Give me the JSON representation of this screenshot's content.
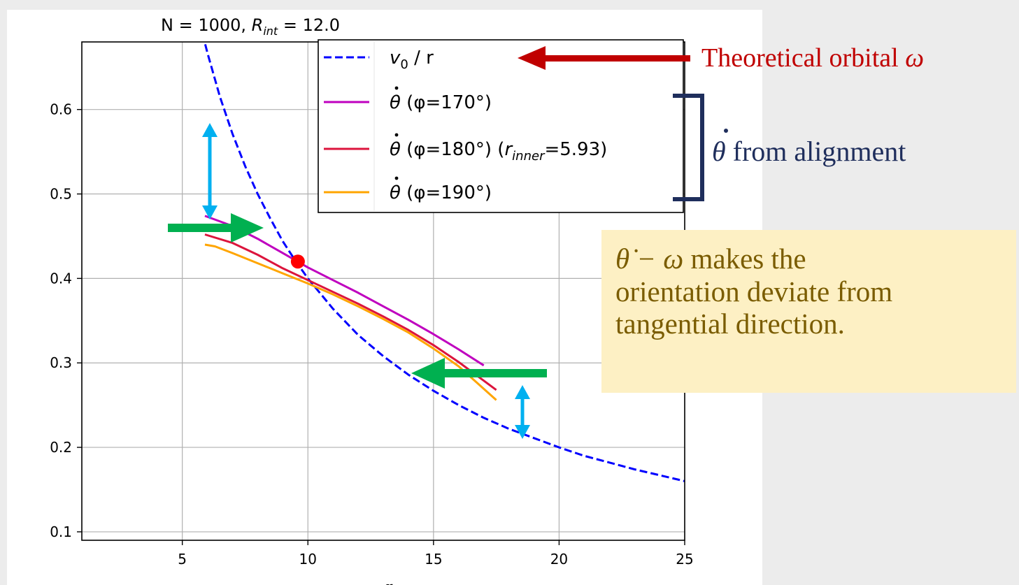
{
  "chart_data": {
    "type": "line",
    "title": "N = 1000,  R_int = 12.0",
    "title_parts": {
      "prefix": "N = 1000,  ",
      "var": "R",
      "sub": "int",
      "suffix": " = 12.0"
    },
    "xlabel": "r",
    "ylabel": "",
    "xlim": [
      1,
      25
    ],
    "ylim": [
      0.09,
      0.68
    ],
    "xticks": [
      5,
      10,
      15,
      20,
      25
    ],
    "yticks": [
      0.1,
      0.2,
      0.3,
      0.4,
      0.5,
      0.6
    ],
    "grid": true,
    "legend_position": "top-right",
    "series": [
      {
        "name": "v0 / r",
        "legend": {
          "var": "v",
          "sub": "0",
          "rest": " / r"
        },
        "style": "dashed",
        "color": "#0000ff",
        "x": [
          5.8,
          6.0,
          6.5,
          7.0,
          7.5,
          8.0,
          8.5,
          9.0,
          9.5,
          10,
          11,
          12,
          13,
          14,
          15,
          16,
          17,
          18,
          19,
          20,
          21,
          22,
          23,
          24,
          25
        ],
        "y": [
          0.69,
          0.667,
          0.615,
          0.571,
          0.533,
          0.5,
          0.471,
          0.444,
          0.421,
          0.4,
          0.364,
          0.333,
          0.308,
          0.286,
          0.267,
          0.25,
          0.235,
          0.222,
          0.211,
          0.2,
          0.19,
          0.182,
          0.174,
          0.167,
          0.16
        ]
      },
      {
        "name": "θ̇ (φ=170°)",
        "legend": {
          "rest": "  (φ=170°)"
        },
        "style": "solid",
        "color": "#bf00bf",
        "x": [
          5.9,
          7,
          8,
          9,
          10,
          11,
          12,
          13,
          14,
          15,
          16,
          17.0
        ],
        "y": [
          0.474,
          0.462,
          0.447,
          0.43,
          0.413,
          0.398,
          0.383,
          0.367,
          0.351,
          0.334,
          0.316,
          0.297
        ]
      },
      {
        "name": "θ̇ (φ=180°) (r_inner=5.93)",
        "legend": {
          "rest": "  (φ=180°)",
          "extra_var": "r",
          "extra_sub": "inner",
          "extra_rest": "=5.93)"
        },
        "style": "solid",
        "color": "#dc143c",
        "x": [
          5.9,
          7,
          8,
          9,
          10,
          11,
          12,
          13,
          14,
          15,
          16,
          17.5
        ],
        "y": [
          0.452,
          0.442,
          0.428,
          0.412,
          0.398,
          0.384,
          0.37,
          0.355,
          0.339,
          0.321,
          0.301,
          0.268
        ]
      },
      {
        "name": "θ̇ (φ=190°)",
        "legend": {
          "rest": "  (φ=190°)"
        },
        "style": "solid",
        "color": "#ffa500",
        "x": [
          5.9,
          6.3,
          7,
          8,
          9,
          10,
          11,
          12,
          13,
          14,
          15,
          16,
          17.5
        ],
        "y": [
          0.44,
          0.438,
          0.43,
          0.418,
          0.406,
          0.394,
          0.381,
          0.367,
          0.352,
          0.336,
          0.317,
          0.296,
          0.256
        ]
      }
    ],
    "highlight_point": {
      "x": 9.6,
      "y": 0.42,
      "color": "#ff0000"
    }
  },
  "annotations": {
    "theoretical": {
      "text": "Theoretical orbital ",
      "symbol": "ω",
      "color": "#c00000"
    },
    "alignment": {
      "symbol": "θ̇",
      "text": " from alignment",
      "color": "#1f2e5c"
    },
    "callout": {
      "line1_math": "θ̇ − ω",
      "line1_text": " makes the",
      "line2": "orientation deviate from",
      "line3": "tangential direction.",
      "text_color": "#7a5c00",
      "bg": "#fdf0c4"
    },
    "arrow_colors": {
      "green": "#00b050",
      "blue": "#00b0f0",
      "red": "#c00000",
      "bracket": "#1f2e5c"
    }
  }
}
